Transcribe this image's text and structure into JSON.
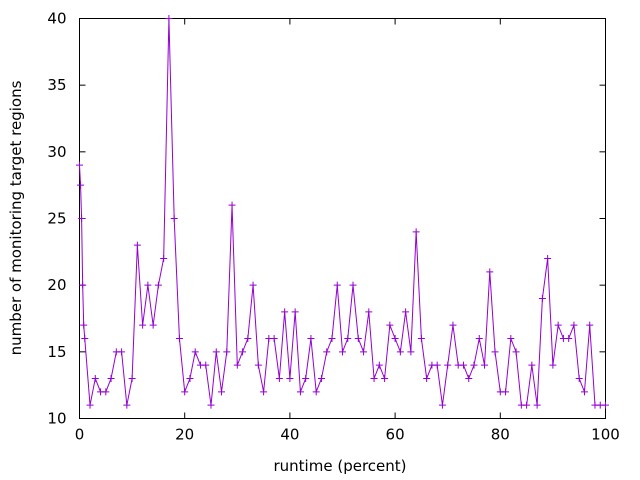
{
  "chart_data": {
    "type": "line",
    "xlabel": "runtime (percent)",
    "ylabel": "number of monitoring target regions",
    "xlim": [
      0,
      100
    ],
    "ylim": [
      10,
      40
    ],
    "xticks": [
      0,
      20,
      40,
      60,
      80,
      100
    ],
    "yticks": [
      10,
      15,
      20,
      25,
      30,
      35,
      40
    ],
    "grid": false,
    "color": "#9400d3",
    "marker": "plus",
    "series": [
      {
        "x": [
          0,
          0.2,
          0.4,
          0.6,
          0.8,
          1,
          2,
          3,
          4,
          5,
          6,
          7,
          8,
          9,
          10,
          11,
          12,
          13,
          14,
          15,
          16,
          17,
          18,
          19,
          20,
          21,
          22,
          23,
          24,
          25,
          26,
          27,
          28,
          29,
          30,
          31,
          32,
          33,
          34,
          35,
          36,
          37,
          38,
          39,
          40,
          41,
          42,
          43,
          44,
          45,
          46,
          47,
          48,
          49,
          50,
          51,
          52,
          53,
          54,
          55,
          56,
          57,
          58,
          59,
          60,
          61,
          62,
          63,
          64,
          65,
          66,
          67,
          68,
          69,
          70,
          71,
          72,
          73,
          74,
          75,
          76,
          77,
          78,
          79,
          80,
          81,
          82,
          83,
          84,
          85,
          86,
          87,
          88,
          89,
          90,
          91,
          92,
          93,
          94,
          95,
          96,
          97,
          98,
          99,
          100
        ],
        "values": [
          29,
          27.5,
          25,
          20,
          17,
          16,
          11,
          13,
          12,
          12,
          13,
          15,
          15,
          11,
          13,
          23,
          17,
          20,
          17,
          20,
          22,
          40,
          25,
          16,
          12,
          13,
          15,
          14,
          14,
          11,
          15,
          12,
          15,
          26,
          14,
          15,
          16,
          20,
          14,
          12,
          16,
          16,
          13,
          18,
          13,
          18,
          12,
          13,
          16,
          12,
          13,
          15,
          16,
          20,
          15,
          16,
          20,
          16,
          15,
          18,
          13,
          14,
          13,
          17,
          16,
          15,
          18,
          15,
          24,
          16,
          13,
          14,
          14,
          11,
          14,
          17,
          14,
          14,
          13,
          14,
          16,
          14,
          21,
          15,
          12,
          12,
          16,
          15,
          11,
          11,
          14,
          11,
          19,
          22,
          14,
          17,
          16,
          16,
          17,
          13,
          12,
          17,
          11,
          11,
          11
        ]
      }
    ]
  }
}
